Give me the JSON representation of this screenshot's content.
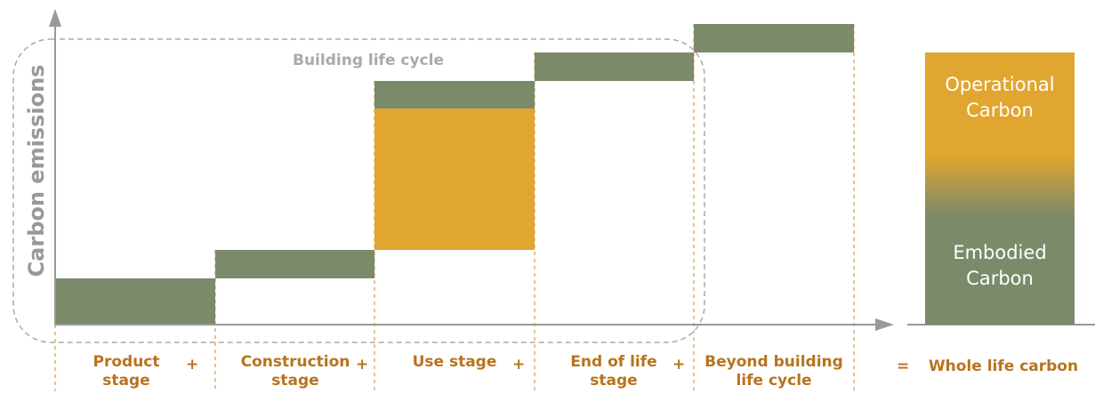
{
  "y_axis_label": "Carbon emissions",
  "boundary_label": "Building life cycle",
  "stages": [
    {
      "label": "Product stage",
      "operator": "+"
    },
    {
      "label": "Construction stage",
      "operator": "+"
    },
    {
      "label": "Use stage",
      "operator": "+"
    },
    {
      "label": "End of life stage",
      "operator": "+"
    },
    {
      "label": "Beyond building life cycle"
    }
  ],
  "result": {
    "operator": "=",
    "label": "Whole life carbon"
  },
  "bar_labels": {
    "top": "Operational Carbon",
    "bottom": "Embodied Carbon"
  }
}
